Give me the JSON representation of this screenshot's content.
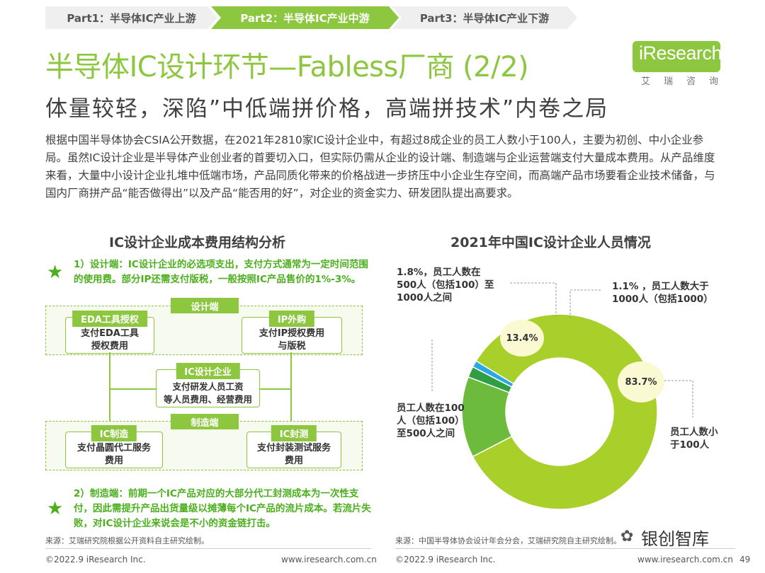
{
  "breadcrumb": {
    "part1": "Part1：半导体IC产业上游",
    "part2": "Part2：半导体IC产业中游",
    "part3": "Part3：半导体IC产业下游"
  },
  "logo": {
    "text": "iResearch",
    "sub": "艾瑞咨询"
  },
  "page_title": "半导体IC设计环节—Fabless厂商 (2/2)",
  "subtitle": "体量较轻，深陷”中低端拼价格，高端拼技术”内卷之局",
  "body": "根据中国半导体协会CSIA公开数据，在2021年2810家IC设计企业中，有超过8成企业的员工人数小于100人，主要为初创、中小企业参局。虽然IC设计企业是半导体产业创业者的首要切入口，但实际仍需从企业的设计端、制造端与企业运营端支付大量成本费用。从产品维度来看，大量中小设计企业扎堆中低端市场，产品同质化带来的价格战进一步挤压中小企业生存空间，而高端产品市场要看企业技术储备，与国内厂商拼产品“能否做得出”以及产品“能否用的好”，对企业的资金实力、研发团队提出高要求。",
  "left": {
    "heading": "IC设计企业成本费用结构分析",
    "note1": "1）设计端：IC设计企业的必选项支出，支付方式通常为一定时间范围的使用费。部分IP还需支付版税，一般按照IC产品售价的1%-3%。",
    "note2": "2）制造端：前期一个IC产品对应的大部分代工封测成本为一次性支付，因此需提升产品出货量级以摊薄每个IC产品的流片成本。若流片失败，对IC设计企业来说会是不小的资金链打击。",
    "design_tag": "设计端",
    "manufacture_tag": "制造端",
    "boxes": {
      "eda": {
        "title": "EDA工具授权",
        "text": "支付EDA工具\n授权费用"
      },
      "ip": {
        "title": "IP外购",
        "text": "支付IP授权费用\n与版税"
      },
      "center": {
        "title": "IC设计企业",
        "text": "支付研发人员工资\n等人员费用、经营费用"
      },
      "mfg": {
        "title": "IC制造",
        "text": "支付晶圆代工服务\n费用"
      },
      "pkg": {
        "title": "IC封测",
        "text": "支付封装测试服务\n费用"
      }
    },
    "source": "来源：艾瑞研究院根据公开资料自主研究绘制。"
  },
  "right": {
    "heading": "2021年中国IC设计企业人员情况",
    "source": "来源：中国半导体协会设计年会分会，艾瑞研究院自主研究绘制。",
    "bubble_large": "83.7%",
    "bubble_small": "13.4%",
    "label_lt100": "员工人数小\n于100人",
    "label_100_500": "员工人数在100\n人（包括100）\n至500人之间",
    "label_500_1000": "1.8%，员工人数在\n500人（包括100）至\n1000人之间",
    "label_gt1000": "1.1% ，员工人数大于\n1000人（包括1000）"
  },
  "chart_data": {
    "type": "pie",
    "title": "2021年中国IC设计企业人员情况",
    "categories": [
      "员工人数小于100人",
      "员工人数在100人（包括100）至500人之间",
      "员工人数在500人（包括100）至1000人之间",
      "员工人数大于1000人（包括1000）"
    ],
    "values": [
      83.7,
      13.4,
      1.8,
      1.1
    ],
    "colors": [
      "#a8cf2a",
      "#6cbb3c",
      "#2f9e44",
      "#29a9e0"
    ],
    "donut": true
  },
  "footer": {
    "copyright_left": "©2022.9 iResearch Inc.",
    "url_left": "www.iresearch.com.cn",
    "copyright_right": "©2022.9 iResearch Inc.",
    "url_right": "www.iresearch.com.cn",
    "page_number": "49",
    "watermark": "银创智库"
  }
}
